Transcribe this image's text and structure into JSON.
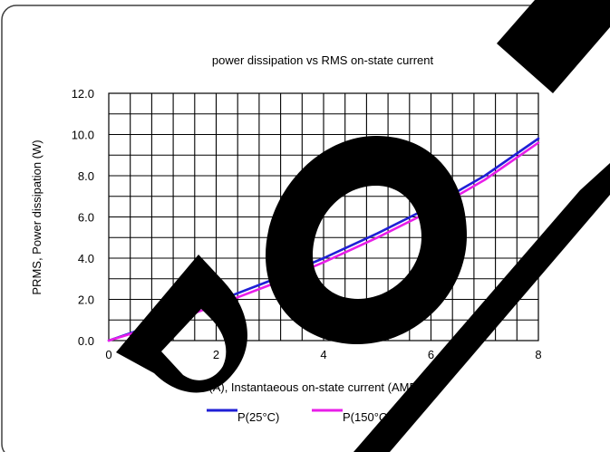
{
  "chart_data": {
    "type": "line",
    "title": "power dissipation vs RMS on-state current",
    "xlabel": "IT(A), Instantaeous  on-state current (AMPS)",
    "ylabel": "PRMS, Power dissipation (W)",
    "xlim": [
      0,
      8
    ],
    "ylim": [
      0,
      12
    ],
    "x_ticks": [
      "0",
      "2",
      "4",
      "6",
      "8"
    ],
    "y_ticks": [
      "0.0",
      "2.0",
      "4.0",
      "6.0",
      "8.0",
      "10.0",
      "12.0"
    ],
    "grid": true,
    "legend_position": "bottom",
    "series": [
      {
        "name": "P(25°C)",
        "color": "#1f1fd6",
        "x": [
          0,
          1,
          2,
          3,
          4,
          5,
          6,
          7,
          8
        ],
        "y": [
          0,
          0.9,
          1.9,
          2.9,
          4.0,
          5.2,
          6.5,
          8.0,
          9.8
        ]
      },
      {
        "name": "P(150°C)",
        "color": "#e81ee8",
        "x": [
          0,
          1,
          2,
          3,
          4,
          5,
          6,
          7,
          8
        ],
        "y": [
          0,
          0.8,
          1.7,
          2.7,
          3.8,
          5.0,
          6.3,
          7.8,
          9.6
        ]
      }
    ]
  },
  "watermark": {
    "text": "DEMO",
    "color": "#000000"
  }
}
